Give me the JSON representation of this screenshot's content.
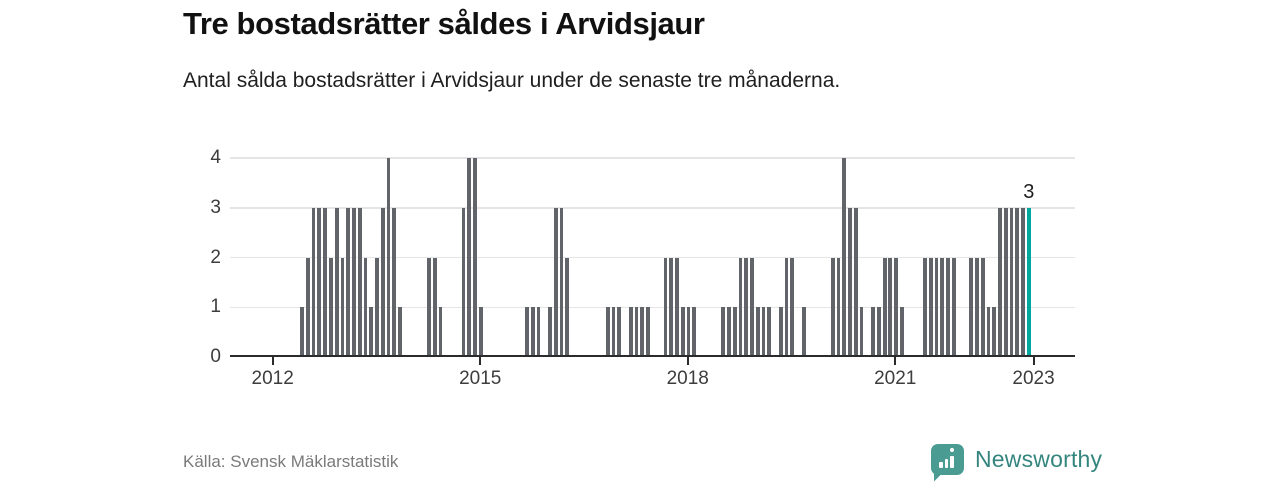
{
  "header": {
    "title": "Tre bostadsrätter såldes i Arvidsjaur",
    "subtitle": "Antal sålda bostadsrätter i Arvidsjaur under de senaste tre månaderna."
  },
  "chart_data": {
    "type": "bar",
    "title": "Tre bostadsrätter såldes i Arvidsjaur",
    "ylabel": "",
    "xlabel": "",
    "ylim": [
      0,
      4
    ],
    "yticks": [
      0,
      1,
      2,
      3,
      4
    ],
    "grid": "horizontal",
    "legend": "none",
    "xticks": [
      {
        "label": "2012",
        "year": 2012
      },
      {
        "label": "2015",
        "year": 2015
      },
      {
        "label": "2018",
        "year": 2018
      },
      {
        "label": "2021",
        "year": 2021
      },
      {
        "label": "2023",
        "year": 2023
      }
    ],
    "bar_color": "#616468",
    "highlight_color": "#00a79d",
    "annotation": {
      "text": "3",
      "month": "2022-12"
    },
    "series": [
      {
        "month": "2012-06",
        "value": 1
      },
      {
        "month": "2012-07",
        "value": 2
      },
      {
        "month": "2012-08",
        "value": 3
      },
      {
        "month": "2012-09",
        "value": 3
      },
      {
        "month": "2012-10",
        "value": 3
      },
      {
        "month": "2012-11",
        "value": 2
      },
      {
        "month": "2012-12",
        "value": 3
      },
      {
        "month": "2013-01",
        "value": 2
      },
      {
        "month": "2013-02",
        "value": 3
      },
      {
        "month": "2013-03",
        "value": 3
      },
      {
        "month": "2013-04",
        "value": 3
      },
      {
        "month": "2013-05",
        "value": 2
      },
      {
        "month": "2013-06",
        "value": 1
      },
      {
        "month": "2013-07",
        "value": 2
      },
      {
        "month": "2013-08",
        "value": 3
      },
      {
        "month": "2013-09",
        "value": 4
      },
      {
        "month": "2013-10",
        "value": 3
      },
      {
        "month": "2013-11",
        "value": 1
      },
      {
        "month": "2014-04",
        "value": 2
      },
      {
        "month": "2014-05",
        "value": 2
      },
      {
        "month": "2014-06",
        "value": 1
      },
      {
        "month": "2014-10",
        "value": 3
      },
      {
        "month": "2014-11",
        "value": 4
      },
      {
        "month": "2014-12",
        "value": 4
      },
      {
        "month": "2015-01",
        "value": 1
      },
      {
        "month": "2015-09",
        "value": 1
      },
      {
        "month": "2015-10",
        "value": 1
      },
      {
        "month": "2015-11",
        "value": 1
      },
      {
        "month": "2016-01",
        "value": 1
      },
      {
        "month": "2016-02",
        "value": 3
      },
      {
        "month": "2016-03",
        "value": 3
      },
      {
        "month": "2016-04",
        "value": 2
      },
      {
        "month": "2016-11",
        "value": 1
      },
      {
        "month": "2016-12",
        "value": 1
      },
      {
        "month": "2017-01",
        "value": 1
      },
      {
        "month": "2017-03",
        "value": 1
      },
      {
        "month": "2017-04",
        "value": 1
      },
      {
        "month": "2017-05",
        "value": 1
      },
      {
        "month": "2017-06",
        "value": 1
      },
      {
        "month": "2017-09",
        "value": 2
      },
      {
        "month": "2017-10",
        "value": 2
      },
      {
        "month": "2017-11",
        "value": 2
      },
      {
        "month": "2017-12",
        "value": 1
      },
      {
        "month": "2018-01",
        "value": 1
      },
      {
        "month": "2018-02",
        "value": 1
      },
      {
        "month": "2018-07",
        "value": 1
      },
      {
        "month": "2018-08",
        "value": 1
      },
      {
        "month": "2018-09",
        "value": 1
      },
      {
        "month": "2018-10",
        "value": 2
      },
      {
        "month": "2018-11",
        "value": 2
      },
      {
        "month": "2018-12",
        "value": 2
      },
      {
        "month": "2019-01",
        "value": 1
      },
      {
        "month": "2019-02",
        "value": 1
      },
      {
        "month": "2019-03",
        "value": 1
      },
      {
        "month": "2019-05",
        "value": 1
      },
      {
        "month": "2019-06",
        "value": 2
      },
      {
        "month": "2019-07",
        "value": 2
      },
      {
        "month": "2019-09",
        "value": 1
      },
      {
        "month": "2020-02",
        "value": 2
      },
      {
        "month": "2020-03",
        "value": 2
      },
      {
        "month": "2020-04",
        "value": 4
      },
      {
        "month": "2020-05",
        "value": 3
      },
      {
        "month": "2020-06",
        "value": 3
      },
      {
        "month": "2020-07",
        "value": 1
      },
      {
        "month": "2020-09",
        "value": 1
      },
      {
        "month": "2020-10",
        "value": 1
      },
      {
        "month": "2020-11",
        "value": 2
      },
      {
        "month": "2020-12",
        "value": 2
      },
      {
        "month": "2021-01",
        "value": 2
      },
      {
        "month": "2021-02",
        "value": 1
      },
      {
        "month": "2021-06",
        "value": 2
      },
      {
        "month": "2021-07",
        "value": 2
      },
      {
        "month": "2021-08",
        "value": 2
      },
      {
        "month": "2021-09",
        "value": 2
      },
      {
        "month": "2021-10",
        "value": 2
      },
      {
        "month": "2021-11",
        "value": 2
      },
      {
        "month": "2022-02",
        "value": 2
      },
      {
        "month": "2022-03",
        "value": 2
      },
      {
        "month": "2022-04",
        "value": 2
      },
      {
        "month": "2022-05",
        "value": 1
      },
      {
        "month": "2022-06",
        "value": 1
      },
      {
        "month": "2022-07",
        "value": 3
      },
      {
        "month": "2022-08",
        "value": 3
      },
      {
        "month": "2022-09",
        "value": 3
      },
      {
        "month": "2022-10",
        "value": 3
      },
      {
        "month": "2022-11",
        "value": 3
      },
      {
        "month": "2022-12",
        "value": 3,
        "highlight": true
      }
    ]
  },
  "footer": {
    "source": "Källa: Svensk Mäklarstatistik",
    "logo_text": "Newsworthy",
    "logo_icon": "bar-chart-speech-bubble-icon"
  },
  "colors": {
    "bar-gray": "#616468",
    "accent-teal": "#00a79d",
    "logo-icon-teal": "#4a9c93",
    "logo-text-teal": "#35857f",
    "grid-gray": "#e5e5e5",
    "axis-dark": "#2b2b2b",
    "text-dark": "#111111",
    "text-muted": "#7a7a7a"
  }
}
